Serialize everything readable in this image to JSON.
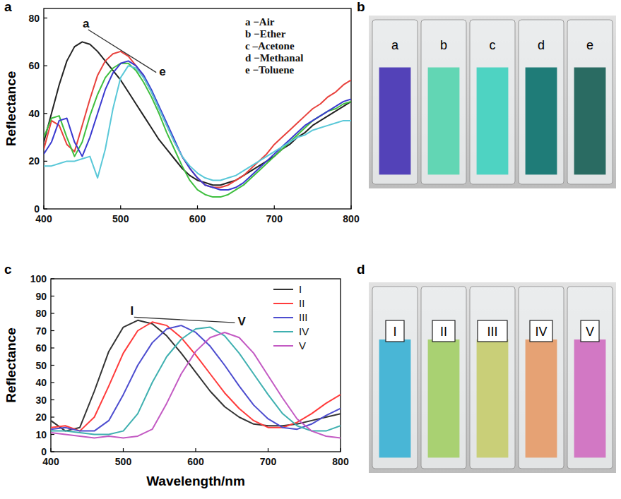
{
  "chart_data": [
    {
      "type": "line",
      "panel_label": "a",
      "y_label": "Reflectance",
      "x": [
        400,
        410,
        420,
        430,
        440,
        450,
        460,
        470,
        480,
        490,
        500,
        510,
        520,
        530,
        540,
        550,
        560,
        570,
        580,
        590,
        600,
        610,
        620,
        630,
        640,
        650,
        660,
        670,
        680,
        690,
        700,
        710,
        720,
        730,
        740,
        750,
        760,
        770,
        780,
        790,
        800
      ],
      "xlim": [
        400,
        800
      ],
      "xticks": [
        400,
        500,
        600,
        700,
        800
      ],
      "ylim": [
        0,
        84
      ],
      "yticks": [
        0,
        20,
        40,
        60,
        80
      ],
      "legend": "upper right",
      "series": [
        {
          "name": "a −Air",
          "color": "#222222",
          "values": [
            28,
            40,
            52,
            62,
            68,
            70,
            69,
            66,
            62,
            58,
            54,
            49,
            44,
            39,
            34,
            29,
            25,
            21,
            17,
            14,
            12,
            11,
            10,
            10,
            11,
            12,
            14,
            16,
            18,
            20,
            22,
            25,
            27,
            30,
            32,
            35,
            37,
            39,
            41,
            43,
            45
          ]
        },
        {
          "name": "b −Ether",
          "color": "#e8413c",
          "values": [
            25,
            37,
            35,
            27,
            24,
            35,
            46,
            56,
            62,
            65,
            66,
            64,
            60,
            55,
            49,
            42,
            35,
            28,
            22,
            17,
            13,
            10,
            9,
            9,
            10,
            12,
            14,
            17,
            20,
            23,
            27,
            30,
            33,
            36,
            39,
            42,
            44,
            47,
            49,
            52,
            54
          ]
        },
        {
          "name": "c –Acetone",
          "color": "#3fbf3f",
          "values": [
            30,
            38,
            39,
            30,
            22,
            28,
            39,
            48,
            55,
            59,
            61,
            61,
            58,
            53,
            47,
            40,
            32,
            25,
            18,
            12,
            8,
            6,
            5,
            5,
            6,
            8,
            10,
            13,
            16,
            19,
            22,
            25,
            28,
            31,
            34,
            37,
            39,
            41,
            42,
            44,
            45
          ]
        },
        {
          "name": "d −Methanal",
          "color": "#3a3ad0",
          "values": [
            23,
            28,
            37,
            38,
            28,
            22,
            30,
            40,
            50,
            57,
            61,
            62,
            60,
            56,
            50,
            43,
            36,
            29,
            22,
            17,
            13,
            10,
            9,
            8,
            8,
            9,
            11,
            14,
            17,
            20,
            23,
            26,
            29,
            32,
            35,
            37,
            39,
            41,
            43,
            45,
            46
          ]
        },
        {
          "name": "e −Toluene",
          "color": "#5ac8d8",
          "values": [
            18,
            18,
            19,
            20,
            20,
            21,
            22,
            13,
            25,
            42,
            55,
            60,
            59,
            55,
            49,
            42,
            35,
            28,
            22,
            18,
            15,
            13,
            12,
            12,
            13,
            14,
            16,
            18,
            20,
            22,
            24,
            26,
            28,
            30,
            31,
            33,
            34,
            35,
            36,
            37,
            37
          ]
        }
      ],
      "annotations": [
        {
          "text": "a",
          "x": 455,
          "y": 76
        },
        {
          "text": "e",
          "x": 550,
          "y": 56
        }
      ]
    },
    {
      "type": "line",
      "panel_label": "c",
      "y_label": "Reflectance",
      "x_label": "Wavelength/nm",
      "x": [
        400,
        420,
        440,
        460,
        480,
        500,
        520,
        540,
        560,
        580,
        600,
        620,
        640,
        660,
        680,
        700,
        720,
        740,
        760,
        780,
        800
      ],
      "xlim": [
        400,
        800
      ],
      "xticks": [
        400,
        500,
        600,
        700,
        800
      ],
      "ylim": [
        0,
        100
      ],
      "yticks": [
        0,
        10,
        20,
        30,
        40,
        50,
        60,
        70,
        80,
        90,
        100
      ],
      "legend": "upper right",
      "series": [
        {
          "name": "I",
          "color": "#333333",
          "values": [
            18,
            12,
            14,
            35,
            58,
            72,
            76,
            74,
            67,
            57,
            46,
            35,
            26,
            20,
            16,
            15,
            15,
            16,
            18,
            20,
            22
          ]
        },
        {
          "name": "II",
          "color": "#ff3b3b",
          "values": [
            14,
            15,
            12,
            20,
            38,
            57,
            70,
            75,
            73,
            66,
            56,
            45,
            34,
            25,
            18,
            14,
            14,
            17,
            22,
            28,
            33
          ]
        },
        {
          "name": "III",
          "color": "#4d4dcf",
          "values": [
            13,
            14,
            12,
            12,
            18,
            33,
            50,
            63,
            71,
            73,
            69,
            61,
            50,
            38,
            27,
            19,
            14,
            13,
            16,
            21,
            25
          ]
        },
        {
          "name": "IV",
          "color": "#3fb0b0",
          "values": [
            12,
            12,
            11,
            10,
            10,
            12,
            22,
            40,
            55,
            65,
            71,
            72,
            67,
            57,
            45,
            33,
            22,
            15,
            12,
            12,
            15
          ]
        },
        {
          "name": "V",
          "color": "#c35ac3",
          "values": [
            11,
            10,
            9,
            8,
            9,
            8,
            9,
            13,
            28,
            45,
            58,
            66,
            69,
            66,
            57,
            44,
            31,
            19,
            12,
            9,
            8
          ]
        }
      ],
      "annotations": [
        {
          "text": "I",
          "x": 512,
          "y": 79
        },
        {
          "text": "V",
          "x": 658,
          "y": 73
        }
      ]
    }
  ],
  "images": [
    {
      "panel_label": "b",
      "samples": [
        {
          "label": "a",
          "color": "#5342b8"
        },
        {
          "label": "b",
          "color": "#62d6b4"
        },
        {
          "label": "c",
          "color": "#4ed3c2"
        },
        {
          "label": "d",
          "color": "#1f7c78"
        },
        {
          "label": "e",
          "color": "#2a6b62"
        }
      ]
    },
    {
      "panel_label": "d",
      "samples": [
        {
          "label": "I",
          "color": "#49b6d6"
        },
        {
          "label": "II",
          "color": "#a9d172"
        },
        {
          "label": "III",
          "color": "#c9cf78"
        },
        {
          "label": "IV",
          "color": "#e6a274"
        },
        {
          "label": "V",
          "color": "#d278c4"
        }
      ]
    }
  ]
}
